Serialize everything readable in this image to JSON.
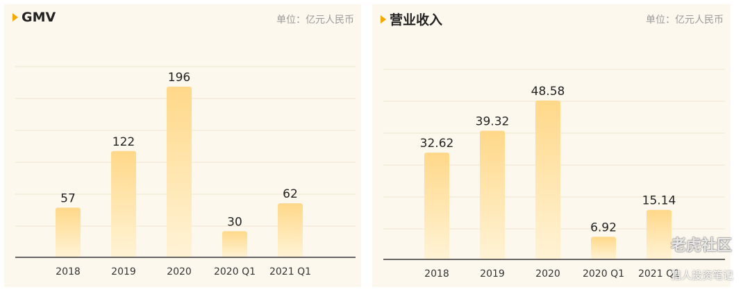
{
  "panels": [
    {
      "title": "GMV",
      "unit": "单位：亿元人民币",
      "chart_data": {
        "type": "bar",
        "title": "GMV",
        "categories": [
          "2018",
          "2019",
          "2020",
          "2020 Q1",
          "2021 Q1"
        ],
        "values": [
          57,
          122,
          196,
          30,
          62
        ],
        "value_labels": [
          "57",
          "122",
          "196",
          "30",
          "62"
        ],
        "ylim": [
          0,
          215
        ],
        "grid": true,
        "bar_color_top": "#ffd889",
        "bar_color_bottom": "#fff3d6"
      }
    },
    {
      "title": "营业收入",
      "unit": "单位：亿元人民币",
      "chart_data": {
        "type": "bar",
        "title": "营业收入",
        "categories": [
          "2018",
          "2019",
          "2020",
          "2020 Q1",
          "2021 Q1"
        ],
        "values": [
          32.62,
          39.32,
          48.58,
          6.92,
          15.14
        ],
        "value_labels": [
          "32.62",
          "39.32",
          "48.58",
          "6.92",
          "15.14"
        ],
        "ylim": [
          0,
          53
        ],
        "grid": true,
        "bar_color_top": "#ffd889",
        "bar_color_bottom": "#fff3d6"
      }
    }
  ],
  "watermark": {
    "line1": "老虎社区",
    "line2": "猎人投资笔记"
  }
}
